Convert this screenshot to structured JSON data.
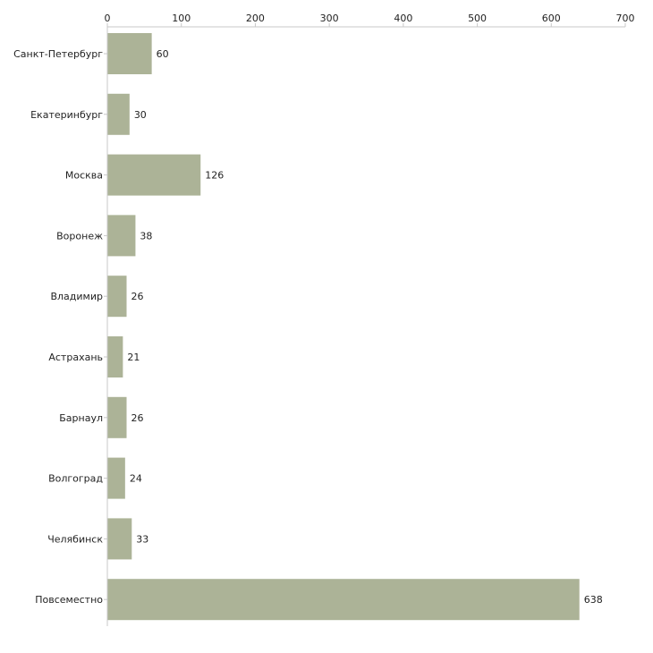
{
  "chart_data": {
    "type": "bar",
    "orientation": "horizontal",
    "title": "",
    "xlabel": "",
    "ylabel": "",
    "xlim": [
      0,
      700
    ],
    "x_ticks": [
      0,
      100,
      200,
      300,
      400,
      500,
      600,
      700
    ],
    "x_axis_position": "top",
    "grid": false,
    "bar_color": "#acb397",
    "categories": [
      "Санкт-Петербург",
      "Екатеринбург",
      "Москва",
      "Воронеж",
      "Владимир",
      "Астрахань",
      "Барнаул",
      "Волгоград",
      "Челябинск",
      "Повсеместно"
    ],
    "values": [
      60,
      30,
      126,
      38,
      26,
      21,
      26,
      24,
      33,
      638
    ]
  }
}
